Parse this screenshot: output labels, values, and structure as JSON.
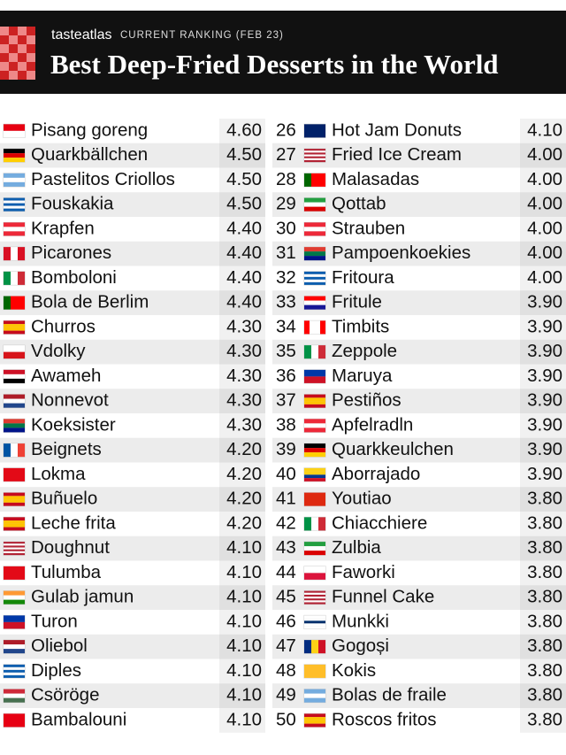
{
  "header": {
    "brand": "tasteatlas",
    "subtitle": "CURRENT RANKING (FEB 23)",
    "title": "Best Deep-Fried Desserts in the World"
  },
  "table": {
    "left": [
      {
        "name": "Pisang goreng",
        "score": "4.60"
      },
      {
        "name": "Quarkbällchen",
        "score": "4.50"
      },
      {
        "name": "Pastelitos Criollos",
        "score": "4.50"
      },
      {
        "name": "Fouskakia",
        "score": "4.50"
      },
      {
        "name": "Krapfen",
        "score": "4.40"
      },
      {
        "name": "Picarones",
        "score": "4.40"
      },
      {
        "name": "Bomboloni",
        "score": "4.40"
      },
      {
        "name": "Bola de Berlim",
        "score": "4.40"
      },
      {
        "name": "Churros",
        "score": "4.30"
      },
      {
        "name": "Vdolky",
        "score": "4.30"
      },
      {
        "name": "Awameh",
        "score": "4.30"
      },
      {
        "name": "Nonnevot",
        "score": "4.30"
      },
      {
        "name": "Koeksister",
        "score": "4.30"
      },
      {
        "name": "Beignets",
        "score": "4.20"
      },
      {
        "name": "Lokma",
        "score": "4.20"
      },
      {
        "name": "Buñuelo",
        "score": "4.20"
      },
      {
        "name": "Leche frita",
        "score": "4.20"
      },
      {
        "name": "Doughnut",
        "score": "4.10"
      },
      {
        "name": "Tulumba",
        "score": "4.10"
      },
      {
        "name": "Gulab jamun",
        "score": "4.10"
      },
      {
        "name": "Turon",
        "score": "4.10"
      },
      {
        "name": "Oliebol",
        "score": "4.10"
      },
      {
        "name": "Diples",
        "score": "4.10"
      },
      {
        "name": "Csöröge",
        "score": "4.10"
      },
      {
        "name": "Bambalouni",
        "score": "4.10"
      }
    ],
    "right": [
      {
        "rank": 26,
        "name": "Hot Jam Donuts",
        "score": "4.10"
      },
      {
        "rank": 27,
        "name": "Fried Ice Cream",
        "score": "4.00"
      },
      {
        "rank": 28,
        "name": "Malasadas",
        "score": "4.00"
      },
      {
        "rank": 29,
        "name": "Qottab",
        "score": "4.00"
      },
      {
        "rank": 30,
        "name": "Strauben",
        "score": "4.00"
      },
      {
        "rank": 31,
        "name": "Pampoenkoekies",
        "score": "4.00"
      },
      {
        "rank": 32,
        "name": "Fritoura",
        "score": "4.00"
      },
      {
        "rank": 33,
        "name": "Fritule",
        "score": "3.90"
      },
      {
        "rank": 34,
        "name": "Timbits",
        "score": "3.90"
      },
      {
        "rank": 35,
        "name": "Zeppole",
        "score": "3.90"
      },
      {
        "rank": 36,
        "name": "Maruya",
        "score": "3.90"
      },
      {
        "rank": 37,
        "name": "Pestiños",
        "score": "3.90"
      },
      {
        "rank": 38,
        "name": "Apfelradln",
        "score": "3.90"
      },
      {
        "rank": 39,
        "name": "Quarkkeulchen",
        "score": "3.90"
      },
      {
        "rank": 40,
        "name": "Aborrajado",
        "score": "3.90"
      },
      {
        "rank": 41,
        "name": "Youtiao",
        "score": "3.80"
      },
      {
        "rank": 42,
        "name": "Chiacchiere",
        "score": "3.80"
      },
      {
        "rank": 43,
        "name": "Zulbia",
        "score": "3.80"
      },
      {
        "rank": 44,
        "name": "Faworki",
        "score": "3.80"
      },
      {
        "rank": 45,
        "name": "Funnel Cake",
        "score": "3.80"
      },
      {
        "rank": 46,
        "name": "Munkki",
        "score": "3.80"
      },
      {
        "rank": 47,
        "name": "Gogoși",
        "score": "3.80"
      },
      {
        "rank": 48,
        "name": "Kokis",
        "score": "3.80"
      },
      {
        "rank": 49,
        "name": "Bolas de fraile",
        "score": "3.80"
      },
      {
        "rank": 50,
        "name": "Roscos fritos",
        "score": "3.80"
      }
    ]
  }
}
